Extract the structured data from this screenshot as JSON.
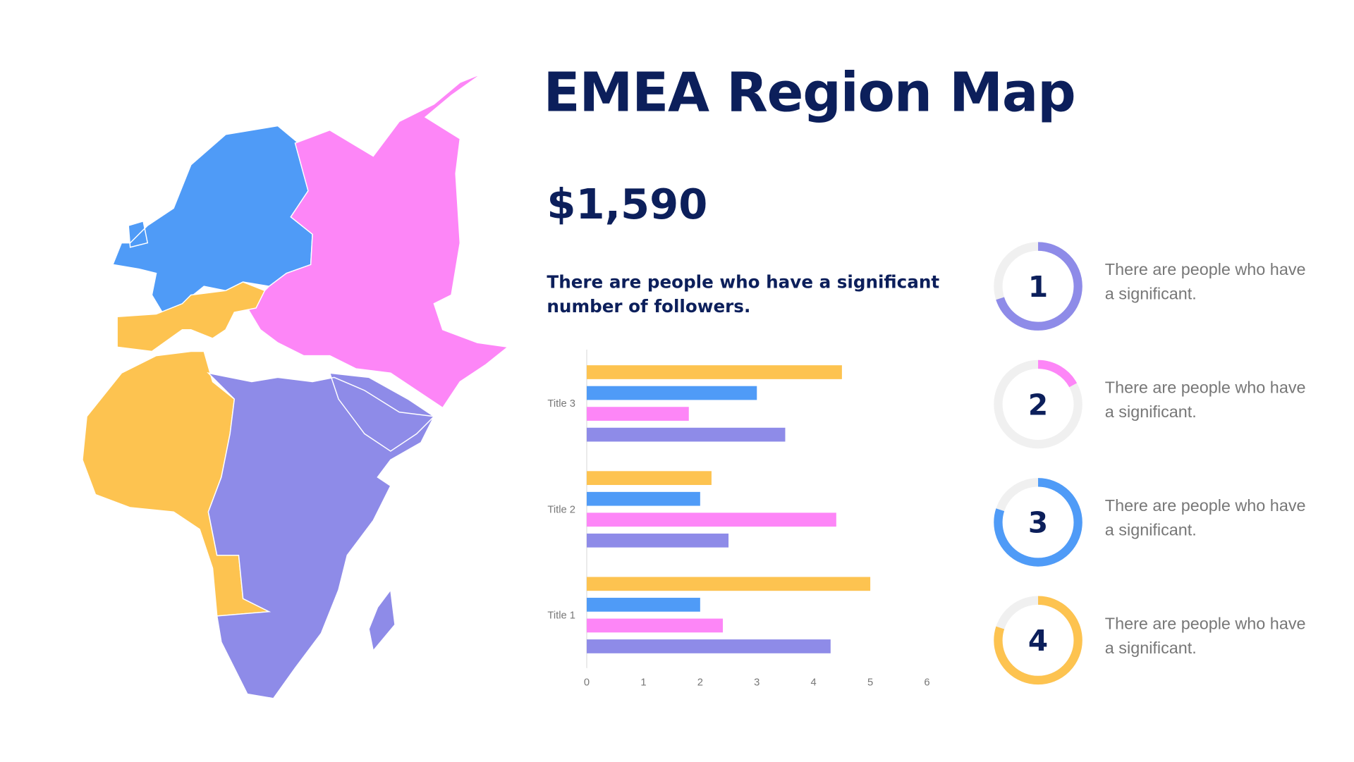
{
  "title": "EMEA Region Map",
  "amount": "$1,590",
  "subtitle": "There are people who have a significant number of followers.",
  "colors": {
    "yellow": "#fdc350",
    "blue": "#4f9bf7",
    "pink": "#fd86f7",
    "purple": "#8e8be8",
    "navy": "#0c1f5b",
    "track": "#f0f0f0"
  },
  "map": {
    "regions": [
      {
        "color": "blue",
        "area": "Northern & Western Europe"
      },
      {
        "color": "pink",
        "area": "Eastern Europe, Russia, Middle East & Central Asia"
      },
      {
        "color": "yellow",
        "area": "Southern Europe & West/North-West Africa"
      },
      {
        "color": "purple",
        "area": "Central, East & Southern Africa, Arabia"
      }
    ]
  },
  "stats": [
    {
      "number": "1",
      "text": "There are people who have a significant.",
      "percent": 70,
      "color": "#8e8be8"
    },
    {
      "number": "2",
      "text": "There are people who have a significant.",
      "percent": 17,
      "color": "#fd86f7"
    },
    {
      "number": "3",
      "text": "There are people who have a significant.",
      "percent": 80,
      "color": "#4f9bf7"
    },
    {
      "number": "4",
      "text": "There are people who have a significant.",
      "percent": 80,
      "color": "#fdc350"
    }
  ],
  "chart_data": {
    "type": "bar",
    "orientation": "horizontal",
    "categories": [
      "Title 3",
      "Title 2",
      "Title 1"
    ],
    "series": [
      {
        "color": "#fdc350",
        "values": [
          4.5,
          2.2,
          5.0
        ]
      },
      {
        "color": "#4f9bf7",
        "values": [
          3.0,
          2.0,
          2.0
        ]
      },
      {
        "color": "#fd86f7",
        "values": [
          1.8,
          4.4,
          2.4
        ]
      },
      {
        "color": "#8e8be8",
        "values": [
          3.5,
          2.5,
          4.3
        ]
      }
    ],
    "xticks": [
      "0",
      "1",
      "2",
      "3",
      "4",
      "5",
      "6"
    ],
    "xlim": [
      0,
      6
    ],
    "grid": false
  }
}
